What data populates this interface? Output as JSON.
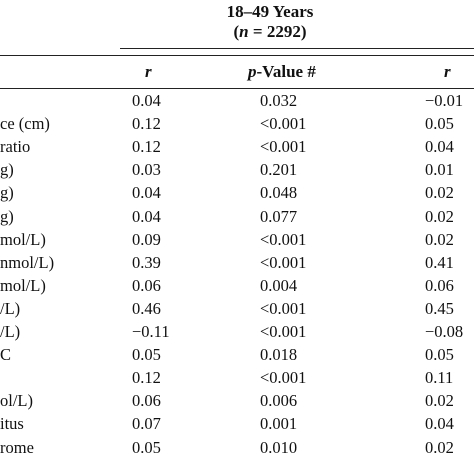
{
  "table": {
    "group_title": "18–49 Years",
    "group_n_label": "n",
    "group_n_value": " = 2292)",
    "columns": {
      "r1": "r",
      "pvalue_italic": "p",
      "pvalue_rest": "-Value #",
      "r2": "r"
    },
    "rows": [
      {
        "label": "",
        "r": "0.04",
        "p": "0.032",
        "r2": "−0.01"
      },
      {
        "label": "ce (cm)",
        "r": "0.12",
        "p": "<0.001",
        "r2": "0.05"
      },
      {
        "label": " ratio",
        "r": "0.12",
        "p": "<0.001",
        "r2": "0.04"
      },
      {
        "label": "g)",
        "r": "0.03",
        "p": "0.201",
        "r2": "0.01"
      },
      {
        "label": "g)",
        "r": "0.04",
        "p": "0.048",
        "r2": "0.02"
      },
      {
        "label": "g)",
        "r": "0.04",
        "p": "0.077",
        "r2": "0.02"
      },
      {
        "label": "mol/L)",
        "r": "0.09",
        "p": "<0.001",
        "r2": "0.02"
      },
      {
        "label": "nmol/L)",
        "r": "0.39",
        "p": "<0.001",
        "r2": "0.41"
      },
      {
        "label": "mol/L)",
        "r": "0.06",
        "p": "0.004",
        "r2": "0.06"
      },
      {
        "label": "/L)",
        "r": "0.46",
        "p": "<0.001",
        "r2": "0.45"
      },
      {
        "label": "/L)",
        "r": "−0.11",
        "p": "<0.001",
        "r2": "−0.08"
      },
      {
        "label": "C",
        "r": "0.05",
        "p": "0.018",
        "r2": "0.05"
      },
      {
        "label": "",
        "r": "0.12",
        "p": "<0.001",
        "r2": "0.11"
      },
      {
        "label": "ol/L)",
        "r": "0.06",
        "p": "0.006",
        "r2": "0.02"
      },
      {
        "label": "itus",
        "r": "0.07",
        "p": "0.001",
        "r2": "0.04"
      },
      {
        "label": "rome",
        "r": "0.05",
        "p": "0.010",
        "r2": "0.02"
      }
    ]
  }
}
